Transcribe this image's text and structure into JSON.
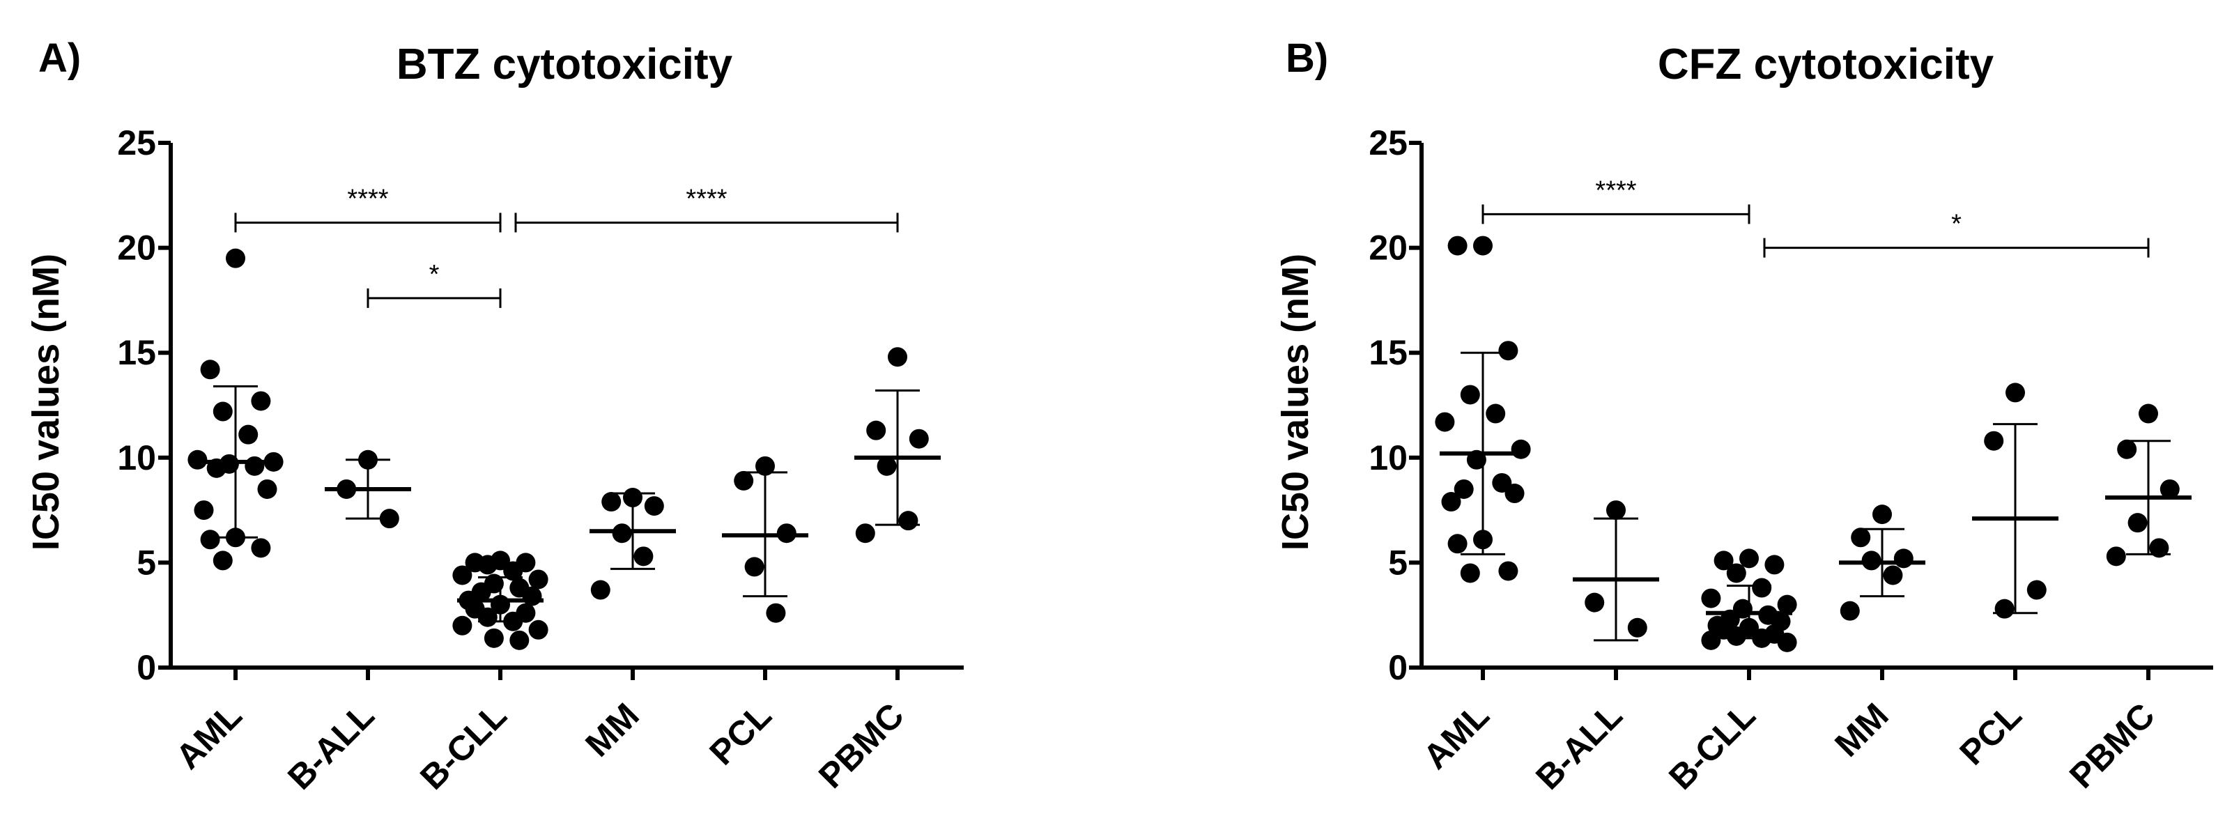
{
  "chart_data": [
    {
      "type": "scatter",
      "panel_label": "A)",
      "title": "BTZ cytotoxicity",
      "xlabel": "",
      "ylabel": "IC50 values (nM)",
      "ylim": [
        0,
        25
      ],
      "yticks": [
        "0",
        "5",
        "10",
        "15",
        "20",
        "25"
      ],
      "categories": [
        "AML",
        "B-ALL",
        "B-CLL",
        "MM",
        "PCL",
        "PBMC"
      ],
      "groups": [
        {
          "name": "AML",
          "points": [
            19.5,
            14.2,
            12.7,
            12.2,
            11.1,
            9.9,
            9.8,
            9.7,
            9.6,
            9.5,
            8.5,
            7.5,
            6.2,
            6.1,
            5.7,
            5.1
          ],
          "mean": 9.8,
          "sd_low": 6.2,
          "sd_high": 13.4
        },
        {
          "name": "B-ALL",
          "points": [
            9.9,
            8.5,
            7.1
          ],
          "mean": 8.5,
          "sd_low": 7.1,
          "sd_high": 9.9
        },
        {
          "name": "B-CLL",
          "points": [
            5.1,
            5.0,
            5.0,
            4.9,
            4.6,
            4.4,
            4.2,
            4.0,
            3.8,
            3.6,
            3.4,
            3.2,
            3.0,
            2.8,
            2.6,
            2.4,
            2.2,
            2.0,
            1.8,
            1.4,
            1.3
          ],
          "mean": 3.2,
          "sd_low": 2.2,
          "sd_high": 4.3
        },
        {
          "name": "MM",
          "points": [
            8.1,
            7.9,
            7.7,
            6.4,
            5.3,
            3.7
          ],
          "mean": 6.5,
          "sd_low": 4.7,
          "sd_high": 8.3
        },
        {
          "name": "PCL",
          "points": [
            9.6,
            8.9,
            6.4,
            4.8,
            2.6
          ],
          "mean": 6.3,
          "sd_low": 3.4,
          "sd_high": 9.3
        },
        {
          "name": "PBMC",
          "points": [
            14.8,
            11.3,
            10.9,
            9.6,
            7.0,
            6.4
          ],
          "mean": 10.0,
          "sd_low": 6.8,
          "sd_high": 13.2
        }
      ],
      "significance": [
        {
          "from": "AML",
          "to": "B-CLL",
          "level": 21.2,
          "label": "****"
        },
        {
          "from": "B-CLL",
          "to": "PBMC",
          "level": 21.2,
          "label": "****"
        },
        {
          "from": "B-ALL",
          "to": "B-CLL",
          "level": 17.6,
          "label": "*"
        }
      ]
    },
    {
      "type": "scatter",
      "panel_label": "B)",
      "title": "CFZ cytotoxicity",
      "xlabel": "",
      "ylabel": "IC50 values (nM)",
      "ylim": [
        0,
        25
      ],
      "yticks": [
        "0",
        "5",
        "10",
        "15",
        "20",
        "25"
      ],
      "categories": [
        "AML",
        "B-ALL",
        "B-CLL",
        "MM",
        "PCL",
        "PBMC"
      ],
      "groups": [
        {
          "name": "AML",
          "points": [
            20.1,
            20.1,
            15.1,
            13.0,
            12.1,
            11.7,
            10.4,
            9.9,
            8.8,
            8.5,
            8.3,
            7.9,
            6.1,
            5.9,
            4.6,
            4.5
          ],
          "mean": 10.2,
          "sd_low": 5.4,
          "sd_high": 15.0
        },
        {
          "name": "B-ALL",
          "points": [
            7.5,
            3.1,
            1.9
          ],
          "mean": 4.2,
          "sd_low": 1.3,
          "sd_high": 7.1
        },
        {
          "name": "B-CLL",
          "points": [
            5.2,
            5.1,
            4.9,
            4.5,
            3.8,
            3.3,
            3.0,
            2.8,
            2.5,
            2.3,
            2.2,
            2.0,
            1.9,
            1.8,
            1.6,
            1.5,
            1.4,
            1.3,
            1.2
          ],
          "mean": 2.6,
          "sd_low": 1.4,
          "sd_high": 3.9
        },
        {
          "name": "MM",
          "points": [
            7.3,
            6.2,
            5.2,
            5.1,
            4.4,
            2.7
          ],
          "mean": 5.0,
          "sd_low": 3.4,
          "sd_high": 6.6
        },
        {
          "name": "PCL",
          "points": [
            13.1,
            10.8,
            3.7,
            2.8
          ],
          "mean": 7.1,
          "sd_low": 2.6,
          "sd_high": 11.6
        },
        {
          "name": "PBMC",
          "points": [
            12.1,
            10.4,
            8.5,
            6.9,
            5.7,
            5.3
          ],
          "mean": 8.1,
          "sd_low": 5.4,
          "sd_high": 10.8
        }
      ],
      "significance": [
        {
          "from": "AML",
          "to": "B-CLL",
          "level": 21.6,
          "label": "****"
        },
        {
          "from": "B-CLL",
          "to": "PBMC",
          "level": 20.0,
          "label": "*"
        }
      ]
    }
  ]
}
